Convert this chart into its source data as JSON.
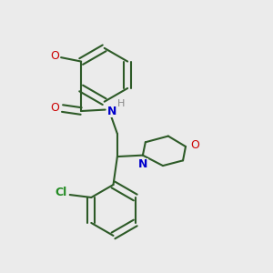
{
  "background_color": "#ebebeb",
  "bond_color": "#2d5a27",
  "nitrogen_color": "#0000cc",
  "oxygen_color": "#cc0000",
  "chlorine_color": "#228b22",
  "text_color_H": "#888888",
  "figsize": [
    3.0,
    3.0
  ],
  "dpi": 100,
  "xlim": [
    0,
    10
  ],
  "ylim": [
    0,
    10
  ]
}
